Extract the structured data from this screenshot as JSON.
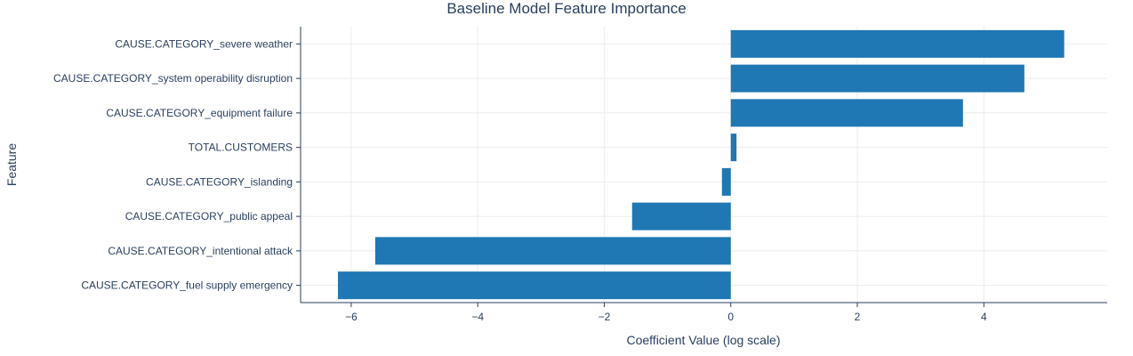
{
  "chart_data": {
    "type": "bar",
    "orientation": "horizontal",
    "title": "Baseline Model Feature Importance",
    "xlabel": "Coefficient Value (log scale)",
    "ylabel": "Feature",
    "xlim": [
      -6.8,
      5.95
    ],
    "xticks": [
      -6,
      -4,
      -2,
      0,
      2,
      4
    ],
    "xtick_labels": [
      "−6",
      "−4",
      "−2",
      "0",
      "2",
      "4"
    ],
    "grid": true,
    "bar_color": "#1f77b4",
    "categories": [
      "CAUSE.CATEGORY_severe weather",
      "CAUSE.CATEGORY_system operability disruption",
      "CAUSE.CATEGORY_equipment failure",
      "TOTAL.CUSTOMERS",
      "CAUSE.CATEGORY_islanding",
      "CAUSE.CATEGORY_public appeal",
      "CAUSE.CATEGORY_intentional attack",
      "CAUSE.CATEGORY_fuel supply emergency"
    ],
    "values": [
      5.27,
      4.64,
      3.67,
      0.09,
      -0.14,
      -1.56,
      -5.62,
      -6.21
    ]
  }
}
